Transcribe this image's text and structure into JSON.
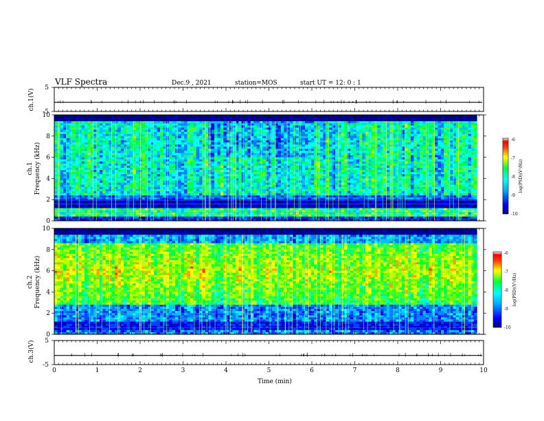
{
  "header": {
    "title": "VLF Spectra",
    "date": "Dec.9 , 2021",
    "station": "station=MOS",
    "start": "start UT =  12: 0 : 1"
  },
  "chart_data": [
    {
      "type": "line",
      "name": "ch1-waveform",
      "ylabel": "ch.1(V)",
      "ylim": [
        -5,
        5
      ],
      "yticks": [
        "5",
        "-5"
      ],
      "xlim": [
        0,
        10
      ],
      "baseline": -1.2
    },
    {
      "type": "heatmap",
      "name": "ch1-spectrogram",
      "ylabel_channel": "ch.1",
      "ylabel": "Frequency (kHz)",
      "ylim": [
        0,
        10
      ],
      "yticks": [
        "0",
        "2",
        "4",
        "6",
        "8",
        "10"
      ],
      "xlim": [
        0,
        10
      ],
      "data_end_min": 9.85,
      "colorbar": {
        "label": "log(PSD)(V²/Hz)",
        "range": [
          -10,
          -6
        ],
        "ticks": [
          "-6",
          "-7",
          "-8",
          "-9",
          "-10"
        ]
      }
    },
    {
      "type": "heatmap",
      "name": "ch2-spectrogram",
      "ylabel_channel": "ch.2",
      "ylabel": "Frequency (kHz)",
      "ylim": [
        0,
        10
      ],
      "yticks": [
        "0",
        "2",
        "4",
        "6",
        "8",
        "10"
      ],
      "xlim": [
        0,
        10
      ],
      "data_end_min": 9.85,
      "colorbar": {
        "label": "log(PSD)(V²/Hz)",
        "range": [
          -10,
          -6
        ],
        "ticks": [
          "-6",
          "-7",
          "-8",
          "-9",
          "-10"
        ]
      }
    },
    {
      "type": "line",
      "name": "ch3-waveform",
      "ylabel": "ch.3(V)",
      "ylim": [
        -5,
        5
      ],
      "yticks": [
        "5",
        "-5"
      ],
      "xlim": [
        0,
        10
      ],
      "baseline": -1.2,
      "xlabel": "Time (min)",
      "xticks": [
        "0",
        "1",
        "2",
        "3",
        "4",
        "5",
        "6",
        "7",
        "8",
        "9",
        "10"
      ]
    }
  ]
}
